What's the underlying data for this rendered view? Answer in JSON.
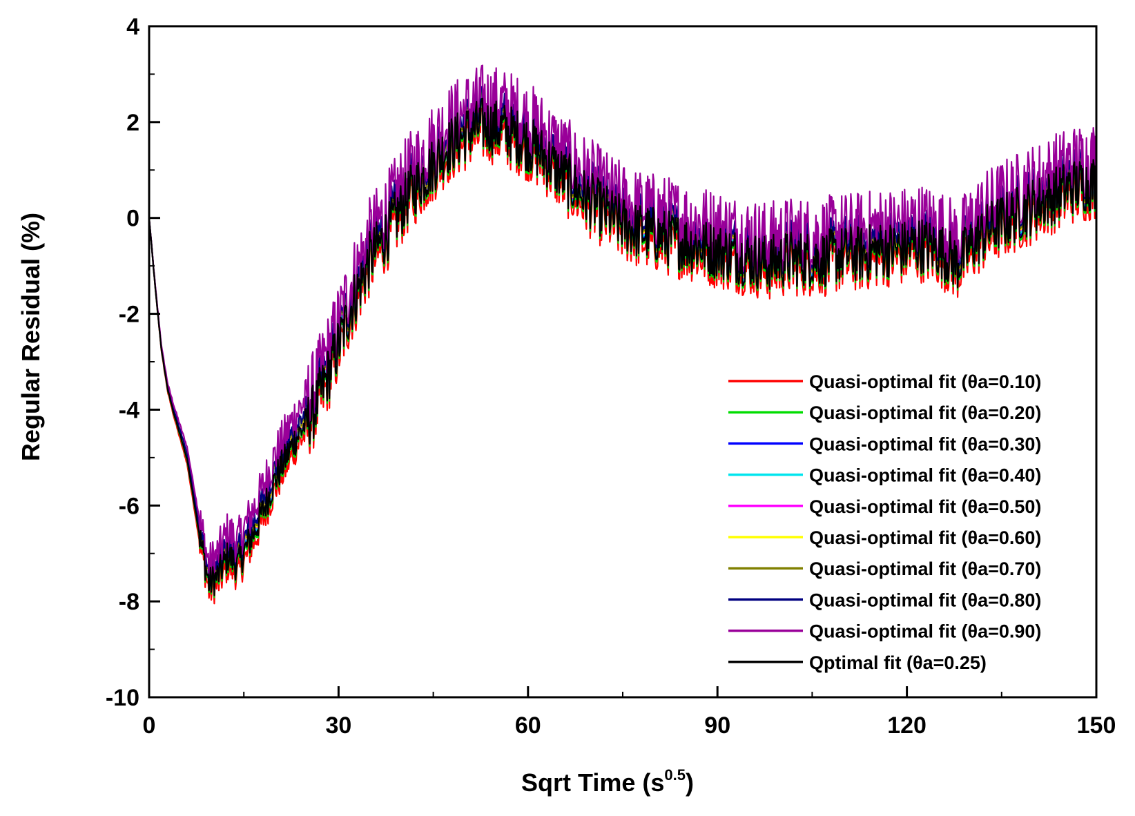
{
  "chart_data": {
    "type": "line",
    "title": "",
    "xlabel_main": "Sqrt Time (s",
    "xlabel_sup": "0.5",
    "xlabel_close": ")",
    "ylabel": "Regular Residual (%)",
    "xlim": [
      0,
      150
    ],
    "ylim": [
      -10,
      4
    ],
    "xticks": [
      0,
      30,
      60,
      90,
      120,
      150
    ],
    "yticks": [
      -10,
      -8,
      -6,
      -4,
      -2,
      0,
      2,
      4
    ],
    "grid": false,
    "legend_position": "bottom-right",
    "base_curve": {
      "x": [
        0,
        1,
        2,
        3,
        4,
        6,
        8,
        9.5,
        11,
        12.5,
        14,
        17,
        20,
        23,
        26,
        29,
        32,
        35,
        38,
        41,
        44,
        47,
        50,
        53,
        56,
        59,
        62,
        65,
        68,
        71,
        74,
        77,
        80,
        83,
        86,
        89,
        92,
        95,
        98,
        101,
        104,
        107,
        110,
        113,
        116,
        119,
        122,
        125,
        128,
        131,
        134,
        137,
        140,
        143,
        146,
        150
      ],
      "y": [
        0,
        -1.5,
        -2.8,
        -3.6,
        -4.1,
        -5.0,
        -6.6,
        -7.6,
        -7.4,
        -7.0,
        -7.2,
        -6.4,
        -5.4,
        -4.6,
        -4.0,
        -3.0,
        -1.8,
        -0.8,
        -0.2,
        0.5,
        1.0,
        1.5,
        1.8,
        2.0,
        1.9,
        1.7,
        1.4,
        1.0,
        0.6,
        0.3,
        0.0,
        -0.2,
        -0.3,
        -0.4,
        -0.5,
        -0.6,
        -0.7,
        -0.8,
        -0.9,
        -0.8,
        -0.8,
        -0.8,
        -0.7,
        -0.7,
        -0.6,
        -0.6,
        -0.5,
        -0.6,
        -0.9,
        -0.4,
        -0.1,
        0.1,
        0.3,
        0.5,
        0.7,
        0.8
      ]
    },
    "series": [
      {
        "name": "Quasi-optimal fit (θa=0.10)",
        "color": "#ff0000",
        "offset": -0.25
      },
      {
        "name": "Quasi-optimal fit (θa=0.20)",
        "color": "#00dd00",
        "offset": -0.1
      },
      {
        "name": "Quasi-optimal fit (θa=0.30)",
        "color": "#0000ff",
        "offset": 0.0
      },
      {
        "name": "Quasi-optimal fit (θa=0.40)",
        "color": "#00e5ee",
        "offset": 0.05
      },
      {
        "name": "Quasi-optimal fit (θa=0.50)",
        "color": "#ff00ff",
        "offset": 0.1
      },
      {
        "name": "Quasi-optimal fit (θa=0.60)",
        "color": "#ffff00",
        "offset": 0.12
      },
      {
        "name": "Quasi-optimal fit (θa=0.70)",
        "color": "#808000",
        "offset": 0.15
      },
      {
        "name": "Quasi-optimal fit (θa=0.80)",
        "color": "#000080",
        "offset": 0.2
      },
      {
        "name": "Quasi-optimal fit (θa=0.90)",
        "color": "#990099",
        "offset": 0.45
      },
      {
        "name": "Qptimal fit (θa=0.25)",
        "color": "#000000",
        "offset": -0.05
      }
    ]
  }
}
